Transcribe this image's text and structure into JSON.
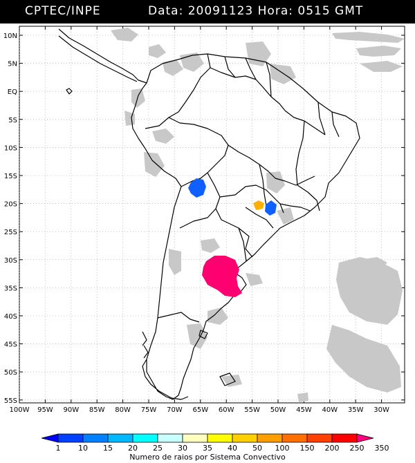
{
  "header": {
    "agency": "CPTEC/INPE",
    "datetime": "Data: 20091123 Hora: 0515 GMT"
  },
  "map": {
    "lat_labels": [
      "10N",
      "5N",
      "EQ",
      "5S",
      "10S",
      "15S",
      "20S",
      "25S",
      "30S",
      "35S",
      "40S",
      "45S",
      "50S",
      "55S"
    ],
    "lon_labels": [
      "100W",
      "95W",
      "90W",
      "85W",
      "80W",
      "75W",
      "70W",
      "65W",
      "60W",
      "55W",
      "50W",
      "45W",
      "40W",
      "35W",
      "30W"
    ],
    "grid": true
  },
  "colorbar": {
    "ticks": [
      "1",
      "10",
      "15",
      "20",
      "25",
      "30",
      "35",
      "40",
      "50",
      "100",
      "150",
      "200",
      "250",
      "350"
    ],
    "colors": [
      "#0000ff",
      "#0040ff",
      "#0080ff",
      "#00b8ff",
      "#00ffff",
      "#c8ffff",
      "#ffffc0",
      "#ffff00",
      "#ffd000",
      "#ffa000",
      "#ff7000",
      "#ff4000",
      "#ff0000",
      "#ff0080"
    ],
    "caption": "Numero de raios por Sistema Convectivo"
  },
  "systems": [
    {
      "color": "#1060ff",
      "value_range": "10-15"
    },
    {
      "color": "#ffb000",
      "value_range": "50-100"
    },
    {
      "color": "#1060ff",
      "value_range": "10-15"
    },
    {
      "color": "#ff0070",
      "value_range": "350"
    }
  ],
  "cloud_color": "#c8c8c8"
}
